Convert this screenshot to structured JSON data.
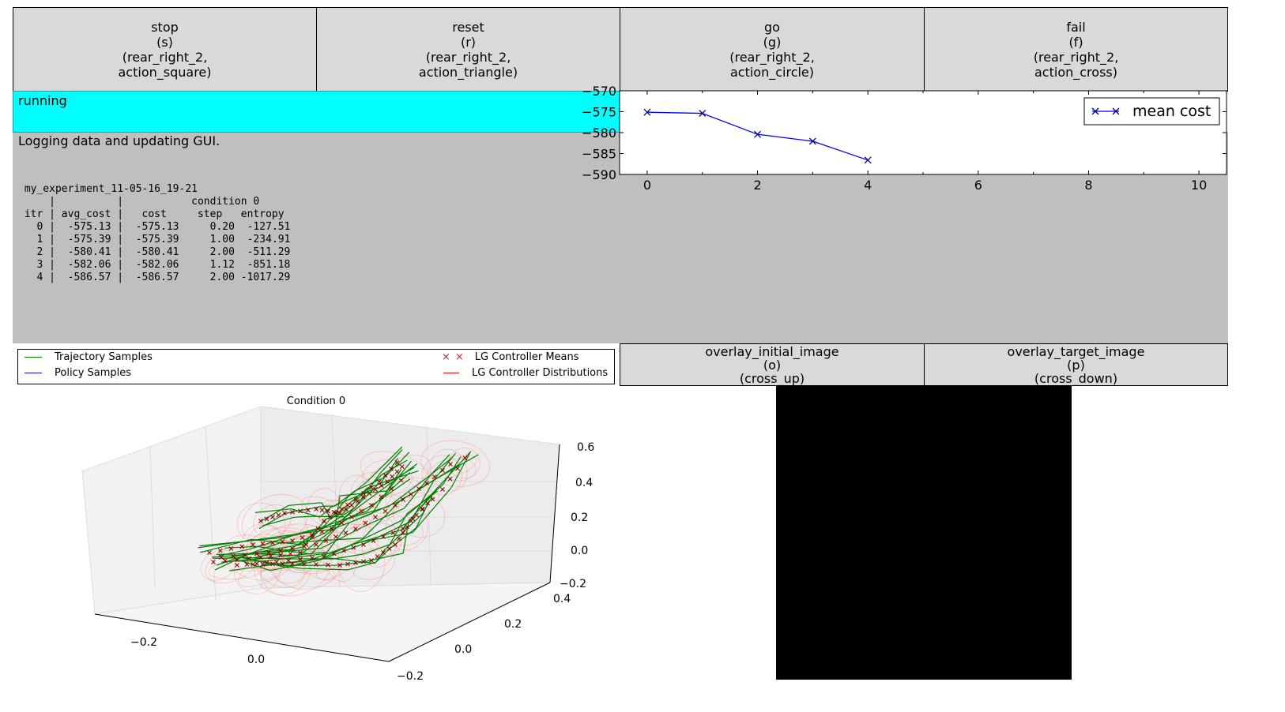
{
  "buttons": [
    {
      "id": "stop",
      "lines": [
        "stop",
        "(s)",
        "(rear_right_2,",
        "action_square)"
      ]
    },
    {
      "id": "reset",
      "lines": [
        "reset",
        "(r)",
        "(rear_right_2,",
        "action_triangle)"
      ]
    },
    {
      "id": "go",
      "lines": [
        "go",
        "(g)",
        "(rear_right_2,",
        "action_circle)"
      ]
    },
    {
      "id": "fail",
      "lines": [
        "fail",
        "(f)",
        "(rear_right_2,",
        "action_cross)"
      ]
    }
  ],
  "status": {
    "text": "running",
    "color": "#00ffff"
  },
  "output": {
    "message": "Logging data and updating GUI.",
    "log": " my_experiment_11-05-16_19-21\n     |          |           condition 0\n itr | avg_cost |   cost     step   entropy\n   0 |  -575.13 |  -575.13     0.20  -127.51\n   1 |  -575.39 |  -575.39     1.00  -234.91\n   2 |  -580.41 |  -580.41     2.00  -511.29\n   3 |  -582.06 |  -582.06     1.12  -851.18\n   4 |  -586.57 |  -586.57     2.00 -1017.29"
  },
  "chart_data": [
    {
      "type": "line",
      "x": [
        0,
        1,
        2,
        3,
        4
      ],
      "series": [
        {
          "name": "mean cost",
          "values": [
            -575.13,
            -575.39,
            -580.41,
            -582.06,
            -586.57
          ],
          "color": "#0000ff",
          "marker": "x"
        }
      ],
      "xlim": [
        -0.5,
        10.5
      ],
      "ylim": [
        -590,
        -570
      ],
      "xticks": [
        "0",
        "2",
        "4",
        "6",
        "8",
        "10"
      ],
      "yticks": [
        "−570",
        "−575",
        "−580",
        "−585",
        "−590"
      ],
      "legend": "top-right"
    },
    {
      "type": "scatter",
      "title": "Condition 0",
      "x_ticks": [
        "−0.2",
        "0.0"
      ],
      "y_ticks": [
        "−0.2",
        "0.0",
        "0.2",
        "0.4"
      ],
      "z_ticks": [
        "−0.2",
        "0.0",
        "0.2",
        "0.4",
        "0.6"
      ],
      "legend_entries": [
        {
          "label": "Trajectory Samples",
          "color": "#008000",
          "marker": "line"
        },
        {
          "label": "Policy Samples",
          "color": "#0000ff",
          "marker": "line"
        },
        {
          "label": "LG Controller Means",
          "color": "#8b0000",
          "marker": "x"
        },
        {
          "label": "LG Controller Distributions",
          "color": "#ff0000",
          "marker": "line"
        }
      ]
    }
  ],
  "overlay_buttons": [
    {
      "id": "overlay_initial_image",
      "lines": [
        "overlay_initial_image",
        "(o)",
        "(cross_up)"
      ]
    },
    {
      "id": "overlay_target_image",
      "lines": [
        "overlay_target_image",
        "(p)",
        "(cross_down)"
      ]
    }
  ],
  "image_display": {
    "color": "#000000"
  }
}
